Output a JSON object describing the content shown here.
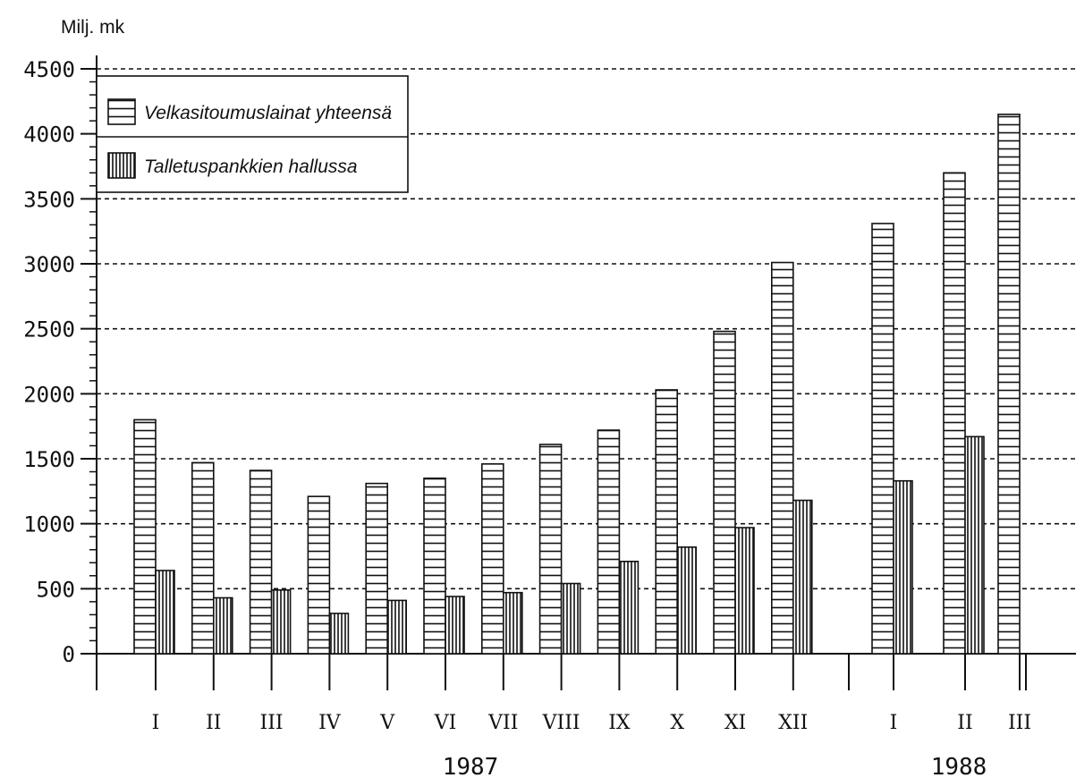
{
  "chart_data": {
    "type": "bar",
    "unit_label": "Milj. mk",
    "ylim": [
      0,
      4500
    ],
    "yticks": [
      0,
      500,
      1000,
      1500,
      2000,
      2500,
      3000,
      3500,
      4000,
      4500
    ],
    "ytick_labels": [
      "0",
      "500",
      "1000",
      "1500",
      "2000",
      "2500",
      "3000",
      "3500",
      "4000",
      "4500"
    ],
    "grid": true,
    "legend_position": "top-left",
    "categories": [
      "I",
      "II",
      "III",
      "IV",
      "V",
      "VI",
      "VII",
      "VIII",
      "IX",
      "X",
      "XI",
      "XII",
      "I",
      "II",
      "III"
    ],
    "years": [
      {
        "label": "1987",
        "months": [
          "I",
          "II",
          "III",
          "IV",
          "V",
          "VI",
          "VII",
          "VIII",
          "IX",
          "X",
          "XI",
          "XII"
        ]
      },
      {
        "label": "1988",
        "months": [
          "I",
          "II",
          "III"
        ]
      }
    ],
    "series": [
      {
        "name": "Velkasitoumuslainat yhteensä",
        "pattern": "horizontal",
        "values": [
          1800,
          1470,
          1410,
          1210,
          1310,
          1350,
          1460,
          1610,
          1720,
          2030,
          2480,
          3010,
          3310,
          3700,
          4150
        ]
      },
      {
        "name": "Talletuspankkien hallussa",
        "pattern": "vertical",
        "values": [
          640,
          430,
          490,
          310,
          410,
          440,
          470,
          540,
          710,
          820,
          970,
          1180,
          1330,
          1670,
          null
        ]
      }
    ]
  }
}
